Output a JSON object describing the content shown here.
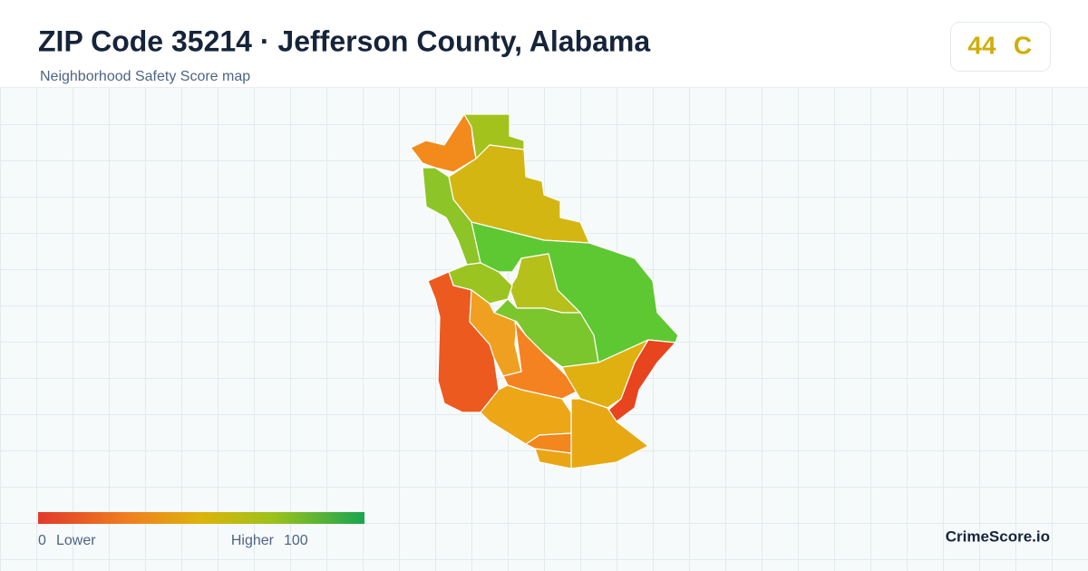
{
  "header": {
    "title": "ZIP Code 35214 · Jefferson County, Alabama",
    "subtitle": "Neighborhood Safety Score map"
  },
  "score": {
    "value": 44,
    "grade": "C"
  },
  "legend": {
    "min": 0,
    "min_label": "Lower",
    "max_label": "Higher",
    "max": 100
  },
  "footer": {
    "brand": "CrimeScore.io"
  }
}
